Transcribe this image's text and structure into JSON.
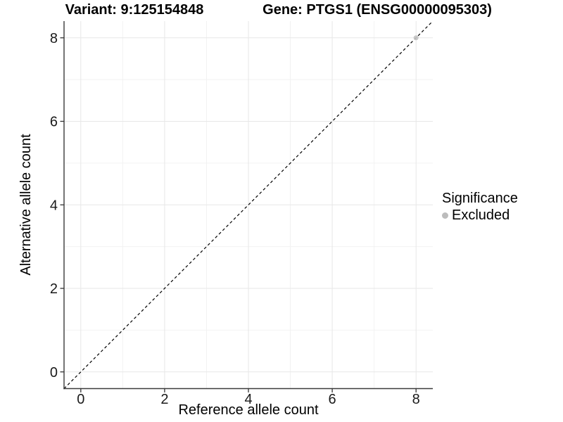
{
  "chart_data": {
    "type": "scatter",
    "titles": {
      "left": "Variant: 9:125154848",
      "right": "Gene: PTGS1 (ENSG00000095303)"
    },
    "xlabel": "Reference allele count",
    "ylabel": "Alternative allele count",
    "xlim": [
      -0.4,
      8.4
    ],
    "ylim": [
      -0.4,
      8.4
    ],
    "x_ticks": [
      0,
      2,
      4,
      6,
      8
    ],
    "y_ticks": [
      0,
      2,
      4,
      6,
      8
    ],
    "x_minor_ticks": [
      1,
      3,
      5,
      7
    ],
    "y_minor_ticks": [
      1,
      3,
      5,
      7
    ],
    "grid": true,
    "legend_position": "right",
    "identity_line": {
      "style": "dashed",
      "slope": 1,
      "from": -0.4,
      "to": 8.4,
      "color": "#000000"
    },
    "series": [
      {
        "name": "Excluded",
        "color": "#c2c2c2",
        "points": [
          [
            8,
            8
          ]
        ]
      }
    ],
    "legend": {
      "title": "Significance",
      "entries": [
        {
          "label": "Excluded",
          "color": "#bcbcbc"
        }
      ]
    },
    "style": {
      "axis_color": "#3a3a3a",
      "tick_color": "#333333",
      "tick_label_color": "#1a1a1a",
      "major_grid_color": "#e7e7e7",
      "minor_grid_color": "#f2f2f2",
      "background": "#ffffff"
    }
  }
}
